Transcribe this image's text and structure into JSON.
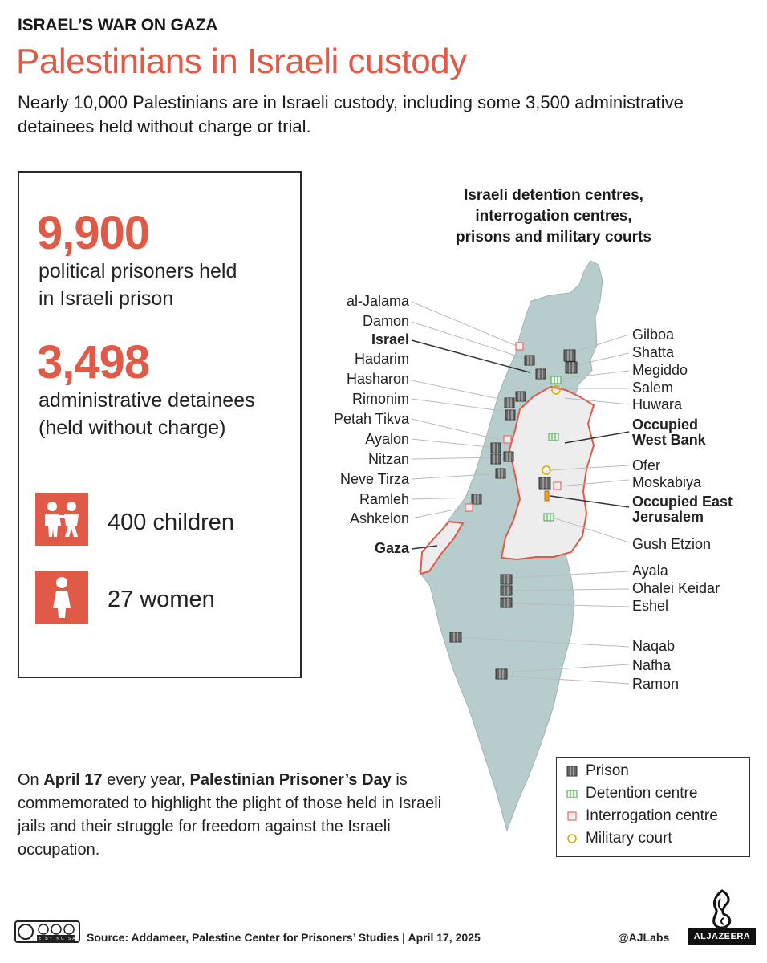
{
  "header": {
    "kicker": "ISRAEL’S WAR ON GAZA",
    "title": "Palestinians in Israeli custody",
    "subtitle": "Nearly 10,000 Palestinians are in Israeli custody, including some 3,500 administrative detainees held without charge or trial."
  },
  "stats": {
    "prisoners_number": "9,900",
    "prisoners_line1": "political prisoners held",
    "prisoners_line2": "in Israeli prison",
    "detainees_number": "3,498",
    "detainees_line1": "administrative detainees",
    "detainees_line2": "(held without charge)",
    "children": "400 children",
    "women": "27 women",
    "children_icon": "children-icon",
    "woman_icon": "woman-icon"
  },
  "map": {
    "title_line1": "Israeli detention centres,",
    "title_line2": "interrogation centres,",
    "title_line3": "prisons and military courts",
    "left_labels": [
      "al-Jalama",
      "Damon",
      "Israel",
      "Hadarim",
      "Hasharon",
      "Rimonim",
      "Petah Tikva",
      "Ayalon",
      "Nitzan",
      "Neve Tirza",
      "Ramleh",
      "Ashkelon",
      "Gaza"
    ],
    "right_labels": [
      "Gilboa",
      "Shatta",
      "Megiddo",
      "Salem",
      "Huwara",
      "Occupied",
      "West Bank",
      "Ofer",
      "Moskabiya",
      "Occupied East",
      "Jerusalem",
      "Gush Etzion",
      "Ayala",
      "Ohalei Keidar",
      "Eshel",
      "Naqab",
      "Nafha",
      "Ramon"
    ],
    "colors": {
      "land": "#b7cccc",
      "occupied": "#ededed",
      "border": "#e05a47",
      "prison": "#555555",
      "detention": "#4aa64a",
      "interrogation": "#e07070",
      "court": "#c8b400"
    }
  },
  "legend": {
    "prison": "Prison",
    "detention": "Detention centre",
    "interrogation": "Interrogation centre",
    "court": "Military court"
  },
  "footer": {
    "note_p1": "On ",
    "note_date": "April 17",
    "note_p2": " every year, ",
    "note_day": "Palestinian Prisoner’s Day",
    "note_p3": " is commemorated to highlight the plight of those held in Israeli jails and their struggle for freedom against the Israeli occupation.",
    "source": "Source: Addameer, Palestine Center for Prisoners’ Studies   |   April 17, 2025",
    "handle": "@AJLabs",
    "cc_text": "cc BY NC SA",
    "brand_text": "ALJAZEERA"
  }
}
